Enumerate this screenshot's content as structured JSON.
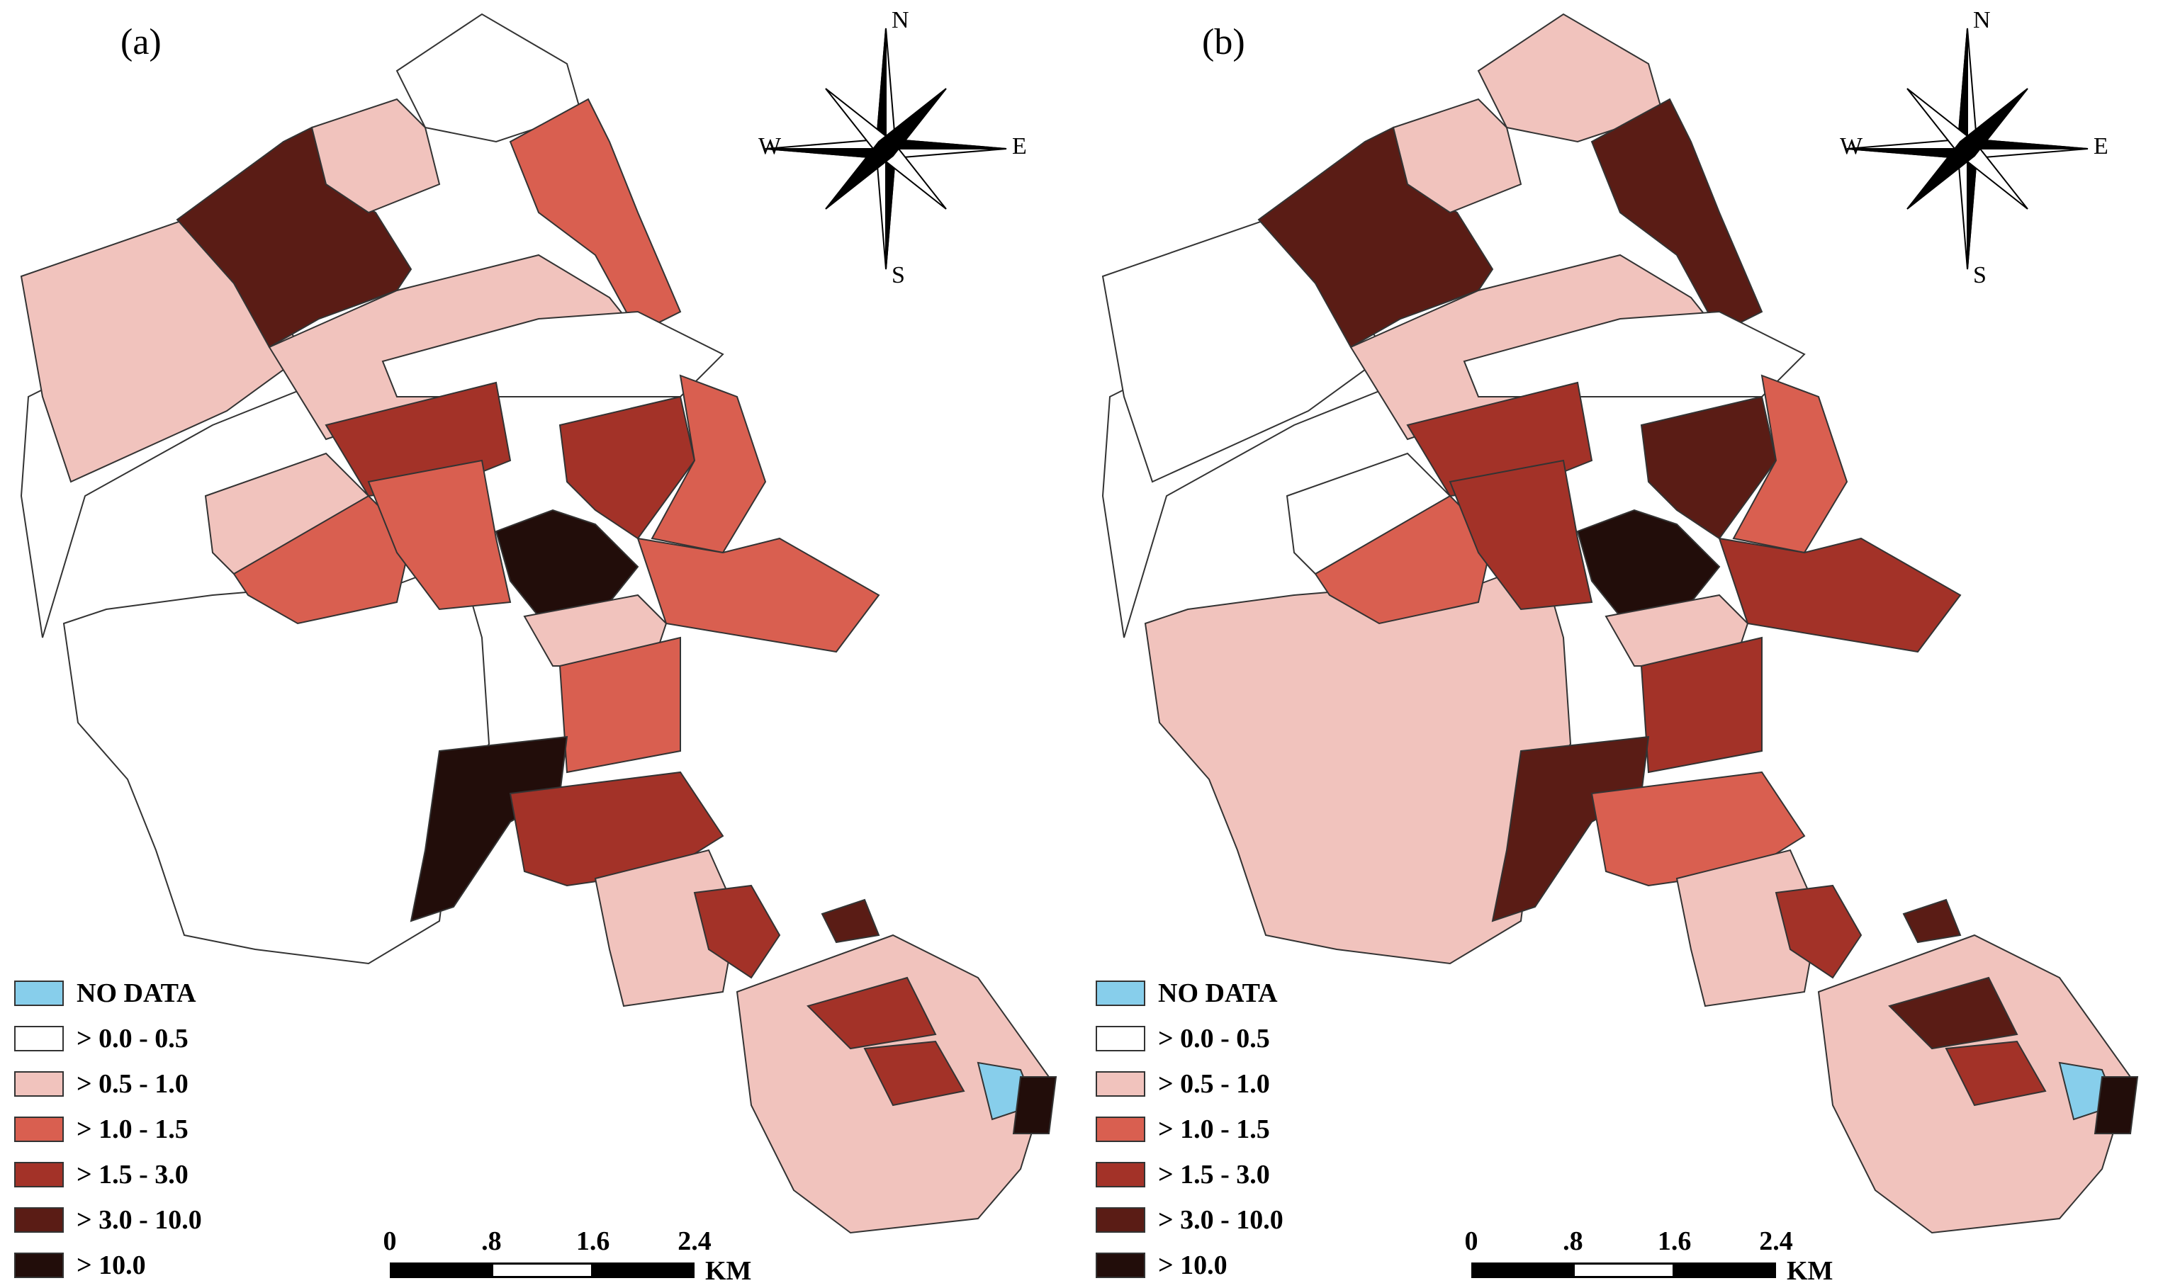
{
  "legend_colors": {
    "no_data": "#87ceeb",
    "c0": "#ffffff",
    "c1": "#f1c3bd",
    "c2": "#d95f50",
    "c3": "#a33228",
    "c4": "#5a1c15",
    "c5": "#220d0a"
  },
  "legend": [
    {
      "label": "NO DATA",
      "color_key": "no_data"
    },
    {
      "label": "> 0.0 - 0.5",
      "color_key": "c0"
    },
    {
      "label": "> 0.5 - 1.0",
      "color_key": "c1"
    },
    {
      "label": "> 1.0 - 1.5",
      "color_key": "c2"
    },
    {
      "label": "> 1.5 - 3.0",
      "color_key": "c3"
    },
    {
      "label": "> 3.0 - 10.0",
      "color_key": "c4"
    },
    {
      "label": "> 10.0",
      "color_key": "c5"
    }
  ],
  "compass": {
    "n": "N",
    "s": "S",
    "w": "W",
    "e": "E",
    "icon": "compass-rose-icon"
  },
  "scale": {
    "ticks": [
      "0",
      ".8",
      "1.6",
      "2.4"
    ],
    "unit": "KM"
  },
  "panels": [
    {
      "id": "a",
      "label": "(a)"
    },
    {
      "id": "b",
      "label": "(b)"
    }
  ]
}
